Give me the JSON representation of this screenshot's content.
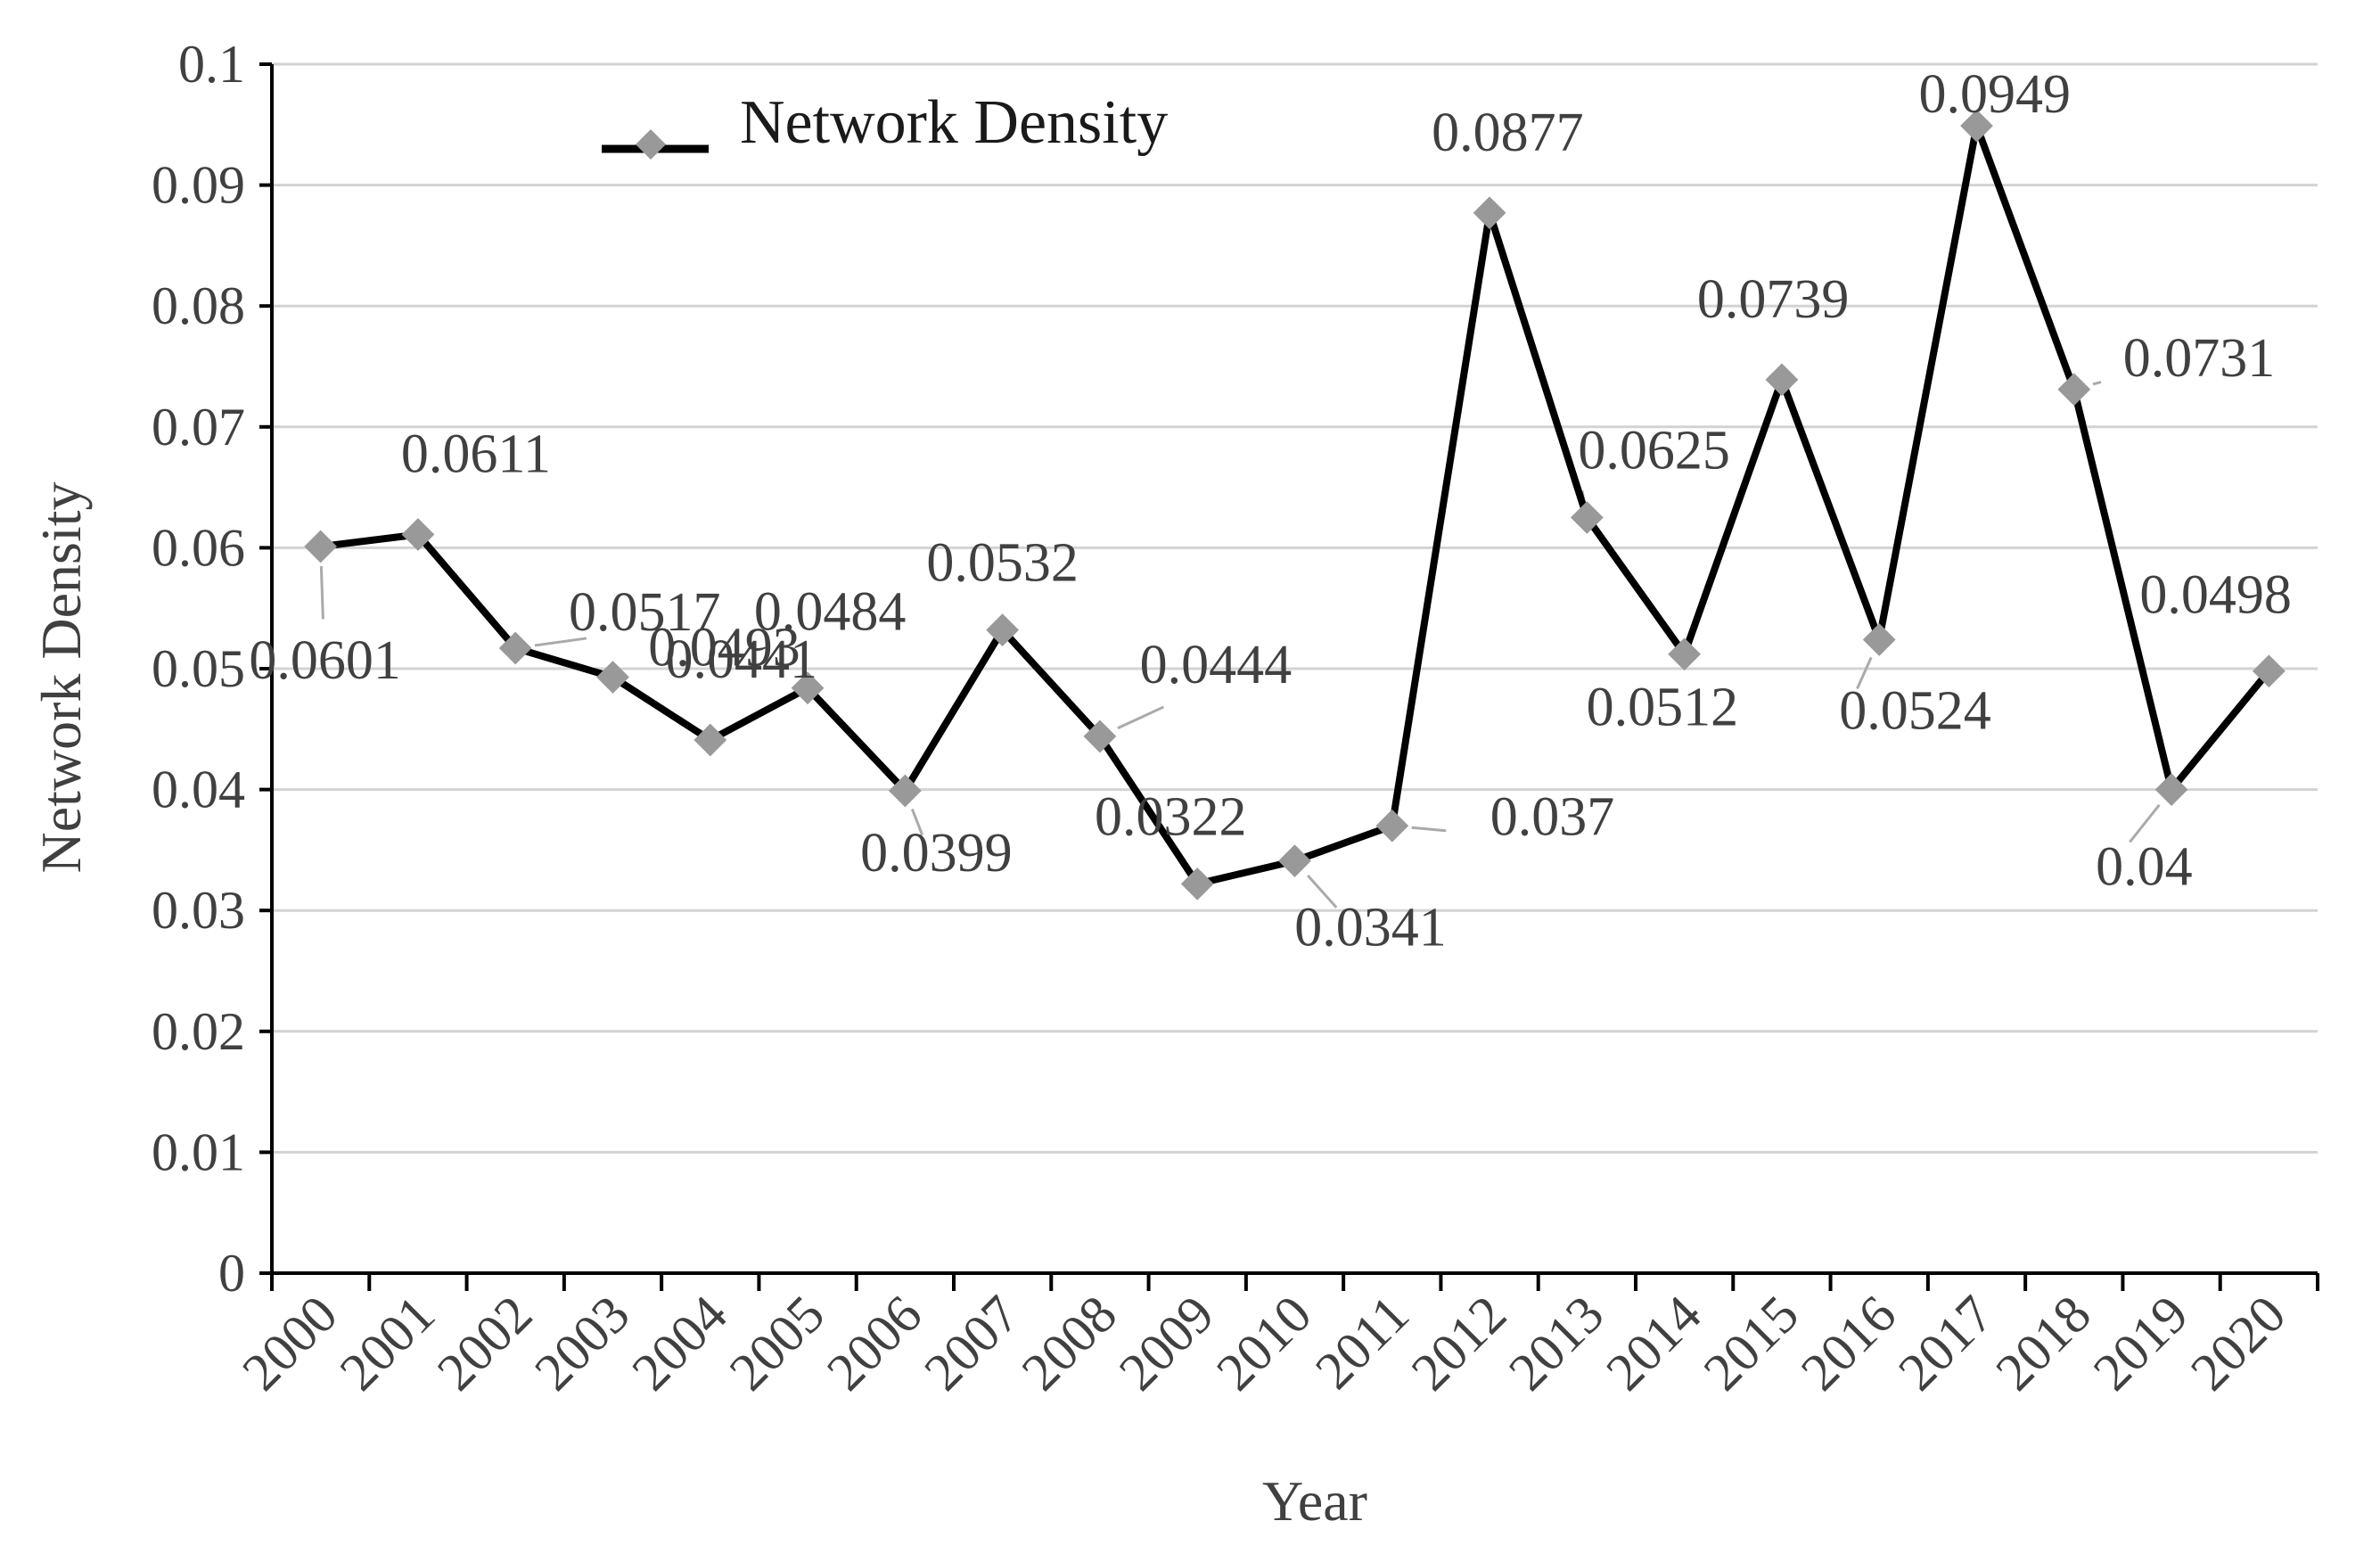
{
  "chart_data": {
    "type": "line",
    "xlabel": "Year",
    "ylabel": "Network Density",
    "ylim": [
      0,
      0.1
    ],
    "yticks": [
      "0",
      "0.01",
      "0.02",
      "0.03",
      "0.04",
      "0.05",
      "0.06",
      "0.07",
      "0.08",
      "0.09",
      "0.1"
    ],
    "grid": "horizontal",
    "legend_position": "top-left",
    "categories": [
      "2000",
      "2001",
      "2002",
      "2003",
      "2004",
      "2005",
      "2006",
      "2007",
      "2008",
      "2009",
      "2010",
      "2011",
      "2012",
      "2013",
      "2014",
      "2015",
      "2016",
      "2017",
      "2018",
      "2019",
      "2020"
    ],
    "series": [
      {
        "name": "Network Density",
        "line_color": "#000000",
        "marker_color": "#999999",
        "values": [
          0.0601,
          0.0611,
          0.0517,
          0.0493,
          0.0441,
          0.0484,
          0.0399,
          0.0532,
          0.0444,
          0.0322,
          0.0341,
          0.037,
          0.0877,
          0.0625,
          0.0512,
          0.0739,
          0.0524,
          0.0949,
          0.0731,
          0.04,
          0.0498
        ],
        "data_labels": [
          "0.0601",
          "0.0611",
          "0.0517",
          "0.0493",
          "0.0441",
          "0.0484",
          "0.0399",
          "0.0532",
          "0.0444",
          "0.0322",
          "0.0341",
          "0.037",
          "0.0877",
          "0.0625",
          "0.0512",
          "0.0739",
          "0.0524",
          "0.0949",
          "0.0731",
          "0.04",
          "0.0498"
        ]
      }
    ]
  }
}
